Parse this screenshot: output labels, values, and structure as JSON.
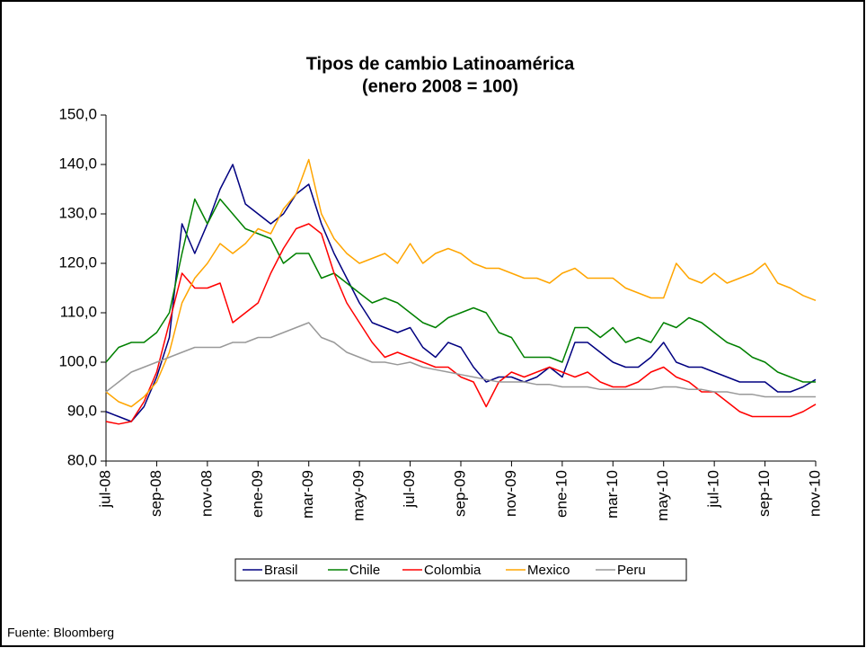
{
  "chart_data": {
    "type": "line",
    "title": "Tipos de cambio Latinoamérica",
    "subtitle": "(enero 2008 = 100)",
    "source": "Fuente: Bloomberg",
    "x": [
      0,
      0.5,
      1,
      1.5,
      2,
      2.5,
      3,
      3.5,
      4,
      4.5,
      5,
      5.5,
      6,
      6.5,
      7,
      7.5,
      8,
      8.5,
      9,
      9.5,
      10,
      10.5,
      11,
      11.5,
      12,
      12.5,
      13,
      13.5,
      14,
      14.5,
      15,
      15.5,
      16,
      16.5,
      17,
      17.5,
      18,
      18.5,
      19,
      19.5,
      20,
      20.5,
      21,
      21.5,
      22,
      22.5,
      23,
      23.5,
      24,
      24.5,
      25,
      25.5,
      26,
      26.5,
      27,
      27.5,
      28
    ],
    "xlim": [
      0,
      28
    ],
    "xticks": [
      {
        "value": 0,
        "label": "jul-08"
      },
      {
        "value": 2,
        "label": "sep-08"
      },
      {
        "value": 4,
        "label": "nov-08"
      },
      {
        "value": 6,
        "label": "ene-09"
      },
      {
        "value": 8,
        "label": "mar-09"
      },
      {
        "value": 10,
        "label": "may-09"
      },
      {
        "value": 12,
        "label": "jul-09"
      },
      {
        "value": 14,
        "label": "sep-09"
      },
      {
        "value": 16,
        "label": "nov-09"
      },
      {
        "value": 18,
        "label": "ene-10"
      },
      {
        "value": 20,
        "label": "mar-10"
      },
      {
        "value": 22,
        "label": "may-10"
      },
      {
        "value": 24,
        "label": "jul-10"
      },
      {
        "value": 26,
        "label": "sep-10"
      },
      {
        "value": 28,
        "label": "nov-10"
      }
    ],
    "ylim": [
      80,
      150
    ],
    "yticks": [
      {
        "value": 80,
        "label": "80,0"
      },
      {
        "value": 90,
        "label": "90,0"
      },
      {
        "value": 100,
        "label": "100,0"
      },
      {
        "value": 110,
        "label": "110,0"
      },
      {
        "value": 120,
        "label": "120,0"
      },
      {
        "value": 130,
        "label": "130,0"
      },
      {
        "value": 140,
        "label": "140,0"
      },
      {
        "value": 150,
        "label": "150,0"
      }
    ],
    "grid": false,
    "legend": "bottom",
    "series": [
      {
        "name": "Brasil",
        "color": "#000080",
        "values": [
          90,
          89,
          88,
          91,
          97,
          105,
          128,
          122,
          128,
          135,
          140,
          132,
          130,
          128,
          130,
          134,
          136,
          128,
          122,
          117,
          112,
          108,
          107,
          106,
          107,
          103,
          101,
          104,
          103,
          99,
          96,
          97,
          97,
          96,
          97,
          99,
          97,
          104,
          104,
          102,
          100,
          99,
          99,
          101,
          104,
          100,
          99,
          99,
          98,
          97,
          96,
          96,
          96,
          94,
          94,
          95,
          96.5
        ]
      },
      {
        "name": "Chile",
        "color": "#008000",
        "values": [
          100,
          103,
          104,
          104,
          106,
          110,
          122,
          133,
          128,
          133,
          130,
          127,
          126,
          125,
          120,
          122,
          122,
          117,
          118,
          116,
          114,
          112,
          113,
          112,
          110,
          108,
          107,
          109,
          110,
          111,
          110,
          106,
          105,
          101,
          101,
          101,
          100,
          107,
          107,
          105,
          107,
          104,
          105,
          104,
          108,
          107,
          109,
          108,
          106,
          104,
          103,
          101,
          100,
          98,
          97,
          96,
          96
        ]
      },
      {
        "name": "Colombia",
        "color": "#ff0000",
        "values": [
          88,
          87.5,
          88,
          92,
          98,
          108,
          118,
          115,
          115,
          116,
          108,
          110,
          112,
          118,
          123,
          127,
          128,
          126,
          118,
          112,
          108,
          104,
          101,
          102,
          101,
          100,
          99,
          99,
          97,
          96,
          91,
          96,
          98,
          97,
          98,
          99,
          98,
          97,
          98,
          96,
          95,
          95,
          96,
          98,
          99,
          97,
          96,
          94,
          94,
          92,
          90,
          89,
          89,
          89,
          89,
          90,
          91.5
        ]
      },
      {
        "name": "Mexico",
        "color": "#ffa500",
        "values": [
          94,
          92,
          91,
          93,
          96,
          102,
          112,
          117,
          120,
          124,
          122,
          124,
          127,
          126,
          131,
          134,
          141,
          130,
          125,
          122,
          120,
          121,
          122,
          120,
          124,
          120,
          122,
          123,
          122,
          120,
          119,
          119,
          118,
          117,
          117,
          116,
          118,
          119,
          117,
          117,
          117,
          115,
          114,
          113,
          113,
          120,
          117,
          116,
          118,
          116,
          117,
          118,
          120,
          116,
          115,
          113.5,
          112.5
        ]
      },
      {
        "name": "Peru",
        "color": "#999999",
        "values": [
          94,
          96,
          98,
          99,
          100,
          101,
          102,
          103,
          103,
          103,
          104,
          104,
          105,
          105,
          106,
          107,
          108,
          105,
          104,
          102,
          101,
          100,
          100,
          99.5,
          100,
          99,
          98.5,
          98,
          97.5,
          97,
          96.5,
          96,
          96,
          96,
          95.5,
          95.5,
          95,
          95,
          95,
          94.5,
          94.5,
          94.5,
          94.5,
          94.5,
          95,
          95,
          94.5,
          94.5,
          94,
          94,
          93.5,
          93.5,
          93,
          93,
          93,
          93,
          93
        ]
      }
    ]
  }
}
